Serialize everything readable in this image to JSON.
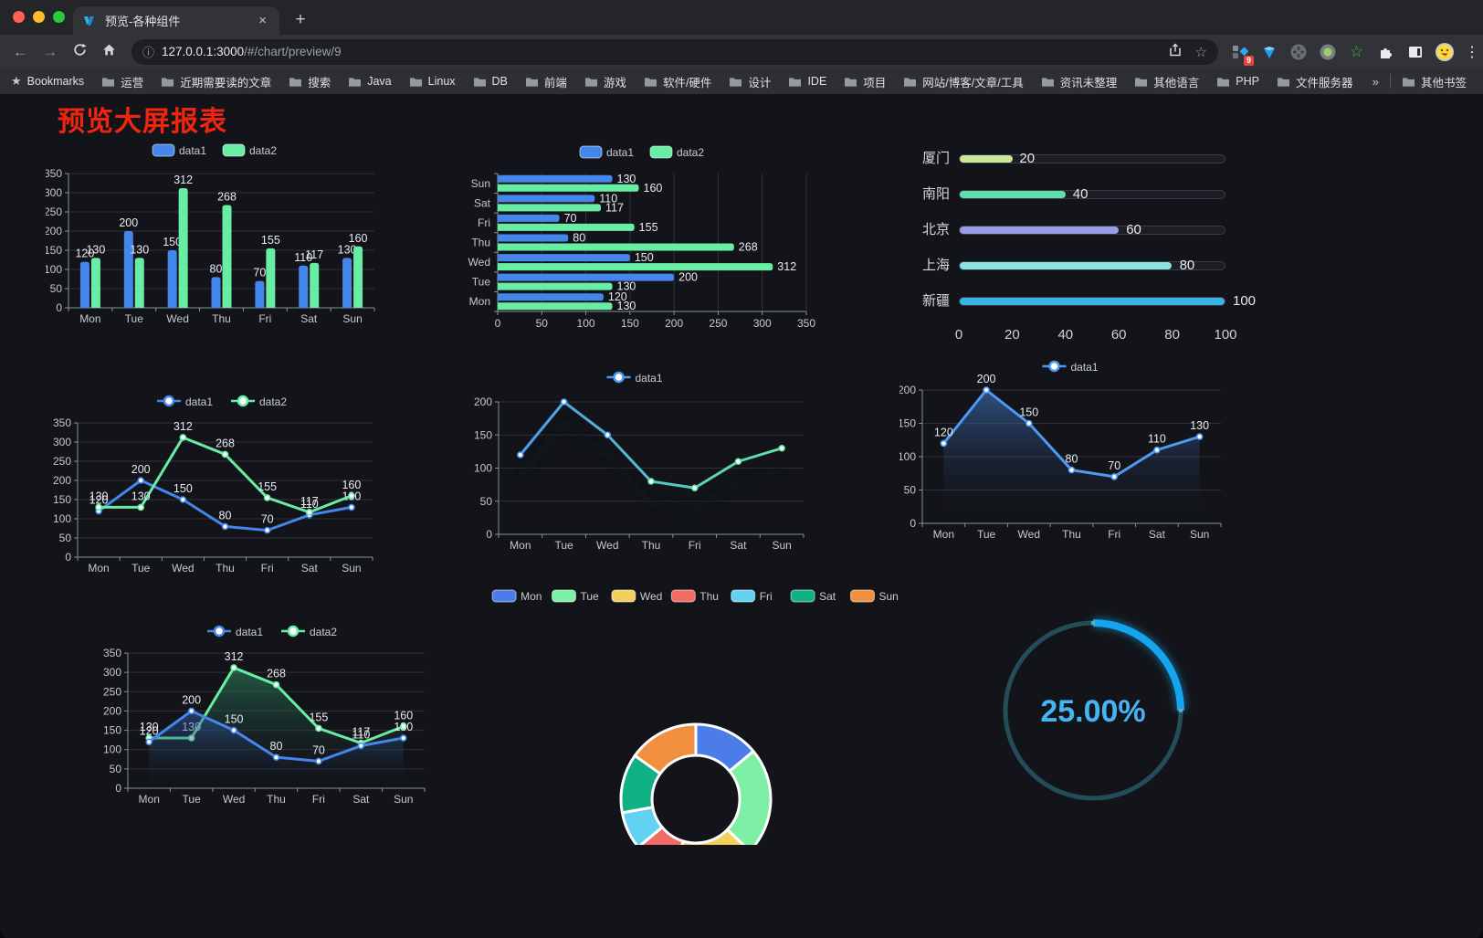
{
  "browser": {
    "tab": {
      "title": "预览-各种组件",
      "close_icon": "×"
    },
    "new_tab_icon": "+",
    "nav": {
      "back_icon": "←",
      "forward_icon": "→"
    },
    "url": {
      "info_icon": "ⓘ",
      "host": "127.0.0.1:3000",
      "path": "/#/chart/preview/9"
    },
    "actions": {
      "star_icon": "☆",
      "menu_icon": "⋮",
      "green_star_icon": "☆"
    },
    "extension_badge": "9",
    "bookmarks_star_icon": "★",
    "bookmarks": [
      {
        "icon": "star",
        "label": "Bookmarks"
      },
      {
        "icon": "folder",
        "label": "运营"
      },
      {
        "icon": "folder",
        "label": "近期需要读的文章"
      },
      {
        "icon": "folder",
        "label": "搜索"
      },
      {
        "icon": "folder",
        "label": "Java"
      },
      {
        "icon": "folder",
        "label": "Linux"
      },
      {
        "icon": "folder",
        "label": "DB"
      },
      {
        "icon": "folder",
        "label": "前端"
      },
      {
        "icon": "folder",
        "label": "游戏"
      },
      {
        "icon": "folder",
        "label": "软件/硬件"
      },
      {
        "icon": "folder",
        "label": "设计"
      },
      {
        "icon": "folder",
        "label": "IDE"
      },
      {
        "icon": "folder",
        "label": "项目"
      },
      {
        "icon": "folder",
        "label": "网站/博客/文章/工具"
      },
      {
        "icon": "folder",
        "label": "资讯未整理"
      },
      {
        "icon": "folder",
        "label": "其他语言"
      },
      {
        "icon": "folder",
        "label": "PHP"
      },
      {
        "icon": "folder",
        "label": "文件服务器"
      }
    ],
    "bookmarks_overflow_icon": "»",
    "other_bookmarks": "其他书签"
  },
  "page": {
    "title": "预览大屏报表",
    "title_color": "#f0250f"
  },
  "chart_data": [
    {
      "id": "bar-grouped",
      "type": "bar",
      "categories": [
        "Mon",
        "Tue",
        "Wed",
        "Thu",
        "Fri",
        "Sat",
        "Sun"
      ],
      "series": [
        {
          "name": "data1",
          "color": "#4486ec",
          "values": [
            120,
            200,
            150,
            80,
            70,
            110,
            130
          ]
        },
        {
          "name": "data2",
          "color": "#68eea4",
          "values": [
            130,
            130,
            312,
            268,
            155,
            117,
            160
          ]
        }
      ],
      "ylim": [
        0,
        350
      ],
      "yticks": [
        0,
        50,
        100,
        150,
        200,
        250,
        300,
        350
      ],
      "legend_position": "top",
      "labels": true,
      "grid": true
    },
    {
      "id": "bar-horizontal",
      "type": "bar-horizontal",
      "categories": [
        "Mon",
        "Tue",
        "Wed",
        "Thu",
        "Fri",
        "Sat",
        "Sun"
      ],
      "series": [
        {
          "name": "data1",
          "color": "#4486ec",
          "values": [
            120,
            200,
            150,
            80,
            70,
            110,
            130
          ]
        },
        {
          "name": "data2",
          "color": "#68eea4",
          "values": [
            130,
            130,
            312,
            268,
            155,
            117,
            160
          ]
        }
      ],
      "xlim": [
        0,
        350
      ],
      "xticks": [
        0,
        50,
        100,
        150,
        200,
        250,
        300,
        350
      ],
      "legend_position": "top",
      "labels": true,
      "grid": true
    },
    {
      "id": "progress",
      "type": "progress-bars",
      "categories": [
        "厦门",
        "南阳",
        "北京",
        "上海",
        "新疆"
      ],
      "values": [
        20,
        40,
        60,
        80,
        100
      ],
      "colors": [
        "#c9e798",
        "#5fe0a8",
        "#9a9ce2",
        "#86e3dd",
        "#38b2e3"
      ],
      "xlim": [
        0,
        100
      ],
      "xticks": [
        0,
        20,
        40,
        60,
        80,
        100
      ]
    },
    {
      "id": "line-two",
      "type": "line",
      "categories": [
        "Mon",
        "Tue",
        "Wed",
        "Thu",
        "Fri",
        "Sat",
        "Sun"
      ],
      "series": [
        {
          "name": "data1",
          "color": "#4486ec",
          "values": [
            120,
            200,
            150,
            80,
            70,
            110,
            130
          ]
        },
        {
          "name": "data2",
          "color": "#68eea4",
          "values": [
            130,
            130,
            312,
            268,
            155,
            117,
            160
          ]
        }
      ],
      "ylim": [
        0,
        350
      ],
      "yticks": [
        0,
        50,
        100,
        150,
        200,
        250,
        300,
        350
      ],
      "legend_position": "top",
      "labels": true,
      "grid": true
    },
    {
      "id": "line-gradient",
      "type": "line",
      "categories": [
        "Mon",
        "Tue",
        "Wed",
        "Thu",
        "Fri",
        "Sat",
        "Sun"
      ],
      "series": [
        {
          "name": "data1",
          "color": "#4e9af0",
          "gradient": [
            "#4e9af0",
            "#5fe6a3"
          ],
          "values": [
            120,
            200,
            150,
            80,
            70,
            110,
            130
          ]
        }
      ],
      "ylim": [
        0,
        200
      ],
      "yticks": [
        0,
        50,
        100,
        150,
        200
      ],
      "legend_position": "top",
      "labels": false,
      "shadow": true,
      "grid": true
    },
    {
      "id": "area-single",
      "type": "area",
      "categories": [
        "Mon",
        "Tue",
        "Wed",
        "Thu",
        "Fri",
        "Sat",
        "Sun"
      ],
      "series": [
        {
          "name": "data1",
          "color": "#4e9af0",
          "area": [
            "rgba(70,130,215,0.55)",
            "rgba(20,26,44,0)"
          ],
          "values": [
            120,
            200,
            150,
            80,
            70,
            110,
            130
          ]
        }
      ],
      "ylim": [
        0,
        200
      ],
      "yticks": [
        0,
        50,
        100,
        150,
        200
      ],
      "legend_position": "top",
      "labels": true,
      "grid": true
    },
    {
      "id": "area-two",
      "type": "area",
      "categories": [
        "Mon",
        "Tue",
        "Wed",
        "Thu",
        "Fri",
        "Sat",
        "Sun"
      ],
      "series": [
        {
          "name": "data2",
          "color": "#68eea4",
          "area": [
            "rgba(46,140,95,0.6)",
            "rgba(20,26,44,0)"
          ],
          "values": [
            130,
            130,
            312,
            268,
            155,
            117,
            160
          ]
        },
        {
          "name": "data1",
          "color": "#4486ec",
          "area": [
            "rgba(50,95,175,0.55)",
            "rgba(20,26,44,0)"
          ],
          "values": [
            120,
            200,
            150,
            80,
            70,
            110,
            130
          ]
        }
      ],
      "legend_order": [
        "data1",
        "data2"
      ],
      "ylim": [
        0,
        350
      ],
      "yticks": [
        0,
        50,
        100,
        150,
        200,
        250,
        300,
        350
      ],
      "legend_position": "top",
      "labels": true,
      "grid": true
    },
    {
      "id": "donut",
      "type": "pie",
      "categories": [
        "Mon",
        "Tue",
        "Wed",
        "Thu",
        "Fri",
        "Sat",
        "Sun"
      ],
      "values": [
        120,
        200,
        150,
        80,
        70,
        110,
        130
      ],
      "colors": [
        "#4b7ce8",
        "#7df0a6",
        "#f3d05c",
        "#f46a67",
        "#63d2f2",
        "#10b184",
        "#f08f3e"
      ],
      "legend_position": "top"
    },
    {
      "id": "gauge",
      "type": "gauge",
      "value": 25,
      "display": "25.00%",
      "color": "#14a5ee",
      "track_color": "#234d59",
      "text_color": "#45b4f2"
    }
  ]
}
